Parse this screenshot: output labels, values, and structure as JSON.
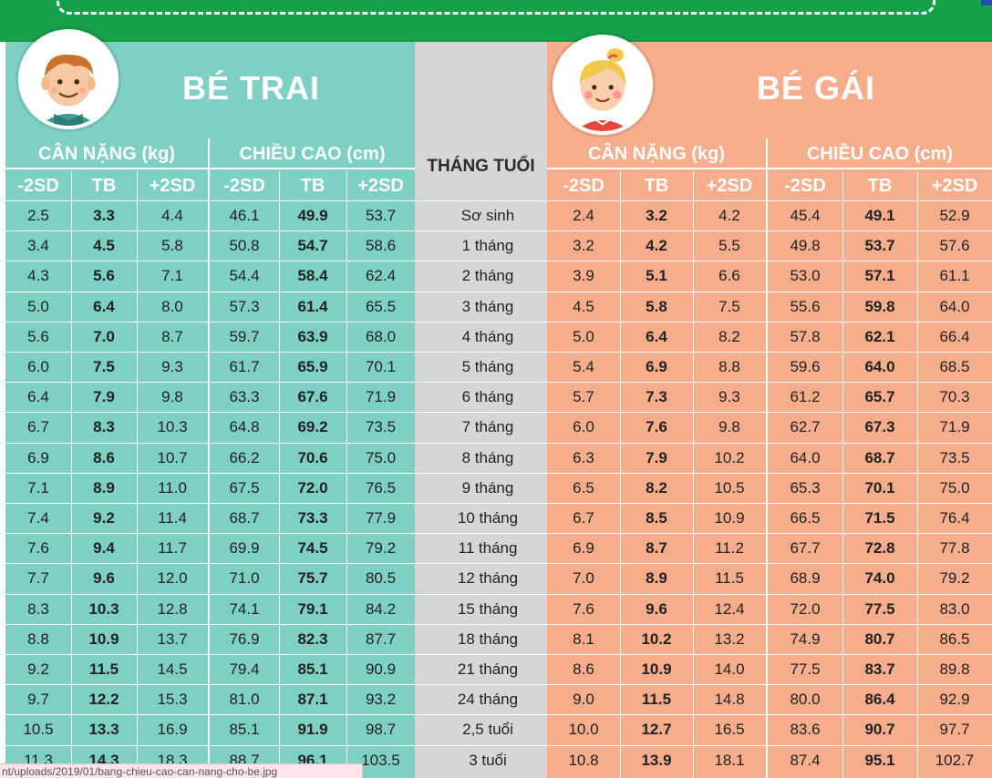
{
  "boy_title": "BÉ TRAI",
  "girl_title": "BÉ GÁI",
  "weight_header": "CÂN NẶNG (kg)",
  "height_header": "CHIỀU CAO (cm)",
  "age_header": "THÁNG TUỔI",
  "sub_headers": [
    "-2SD",
    "TB",
    "+2SD"
  ],
  "rows": [
    {
      "age": "Sơ sinh",
      "boy": [
        "2.5",
        "3.3",
        "4.4",
        "46.1",
        "49.9",
        "53.7"
      ],
      "girl": [
        "2.4",
        "3.2",
        "4.2",
        "45.4",
        "49.1",
        "52.9"
      ]
    },
    {
      "age": "1 tháng",
      "boy": [
        "3.4",
        "4.5",
        "5.8",
        "50.8",
        "54.7",
        "58.6"
      ],
      "girl": [
        "3.2",
        "4.2",
        "5.5",
        "49.8",
        "53.7",
        "57.6"
      ]
    },
    {
      "age": "2 tháng",
      "boy": [
        "4.3",
        "5.6",
        "7.1",
        "54.4",
        "58.4",
        "62.4"
      ],
      "girl": [
        "3.9",
        "5.1",
        "6.6",
        "53.0",
        "57.1",
        "61.1"
      ]
    },
    {
      "age": "3 tháng",
      "boy": [
        "5.0",
        "6.4",
        "8.0",
        "57.3",
        "61.4",
        "65.5"
      ],
      "girl": [
        "4.5",
        "5.8",
        "7.5",
        "55.6",
        "59.8",
        "64.0"
      ]
    },
    {
      "age": "4 tháng",
      "boy": [
        "5.6",
        "7.0",
        "8.7",
        "59.7",
        "63.9",
        "68.0"
      ],
      "girl": [
        "5.0",
        "6.4",
        "8.2",
        "57.8",
        "62.1",
        "66.4"
      ]
    },
    {
      "age": "5 tháng",
      "boy": [
        "6.0",
        "7.5",
        "9.3",
        "61.7",
        "65.9",
        "70.1"
      ],
      "girl": [
        "5.4",
        "6.9",
        "8.8",
        "59.6",
        "64.0",
        "68.5"
      ]
    },
    {
      "age": "6 tháng",
      "boy": [
        "6.4",
        "7.9",
        "9.8",
        "63.3",
        "67.6",
        "71.9"
      ],
      "girl": [
        "5.7",
        "7.3",
        "9.3",
        "61.2",
        "65.7",
        "70.3"
      ]
    },
    {
      "age": "7 tháng",
      "boy": [
        "6.7",
        "8.3",
        "10.3",
        "64.8",
        "69.2",
        "73.5"
      ],
      "girl": [
        "6.0",
        "7.6",
        "9.8",
        "62.7",
        "67.3",
        "71.9"
      ]
    },
    {
      "age": "8 tháng",
      "boy": [
        "6.9",
        "8.6",
        "10.7",
        "66.2",
        "70.6",
        "75.0"
      ],
      "girl": [
        "6.3",
        "7.9",
        "10.2",
        "64.0",
        "68.7",
        "73.5"
      ]
    },
    {
      "age": "9 tháng",
      "boy": [
        "7.1",
        "8.9",
        "11.0",
        "67.5",
        "72.0",
        "76.5"
      ],
      "girl": [
        "6.5",
        "8.2",
        "10.5",
        "65.3",
        "70.1",
        "75.0"
      ]
    },
    {
      "age": "10 tháng",
      "boy": [
        "7.4",
        "9.2",
        "11.4",
        "68.7",
        "73.3",
        "77.9"
      ],
      "girl": [
        "6.7",
        "8.5",
        "10.9",
        "66.5",
        "71.5",
        "76.4"
      ]
    },
    {
      "age": "11 tháng",
      "boy": [
        "7.6",
        "9.4",
        "11.7",
        "69.9",
        "74.5",
        "79.2"
      ],
      "girl": [
        "6.9",
        "8.7",
        "11.2",
        "67.7",
        "72.8",
        "77.8"
      ]
    },
    {
      "age": "12 tháng",
      "boy": [
        "7.7",
        "9.6",
        "12.0",
        "71.0",
        "75.7",
        "80.5"
      ],
      "girl": [
        "7.0",
        "8.9",
        "11.5",
        "68.9",
        "74.0",
        "79.2"
      ]
    },
    {
      "age": "15 tháng",
      "boy": [
        "8.3",
        "10.3",
        "12.8",
        "74.1",
        "79.1",
        "84.2"
      ],
      "girl": [
        "7.6",
        "9.6",
        "12.4",
        "72.0",
        "77.5",
        "83.0"
      ]
    },
    {
      "age": "18 tháng",
      "boy": [
        "8.8",
        "10.9",
        "13.7",
        "76.9",
        "82.3",
        "87.7"
      ],
      "girl": [
        "8.1",
        "10.2",
        "13.2",
        "74.9",
        "80.7",
        "86.5"
      ]
    },
    {
      "age": "21 tháng",
      "boy": [
        "9.2",
        "11.5",
        "14.5",
        "79.4",
        "85.1",
        "90.9"
      ],
      "girl": [
        "8.6",
        "10.9",
        "14.0",
        "77.5",
        "83.7",
        "89.8"
      ]
    },
    {
      "age": "24 tháng",
      "boy": [
        "9.7",
        "12.2",
        "15.3",
        "81.0",
        "87.1",
        "93.2"
      ],
      "girl": [
        "9.0",
        "11.5",
        "14.8",
        "80.0",
        "86.4",
        "92.9"
      ]
    },
    {
      "age": "2,5 tuổi",
      "boy": [
        "10.5",
        "13.3",
        "16.9",
        "85.1",
        "91.9",
        "98.7"
      ],
      "girl": [
        "10.0",
        "12.7",
        "16.5",
        "83.6",
        "90.7",
        "97.7"
      ]
    },
    {
      "age": "3 tuổi",
      "boy": [
        "11.3",
        "14.3",
        "18.3",
        "88.7",
        "96.1",
        "103.5"
      ],
      "girl": [
        "10.8",
        "13.9",
        "18.1",
        "87.4",
        "95.1",
        "102.7"
      ]
    }
  ],
  "status_url": "nt/uploads/2019/01/bang-chieu-cao-can-nang-cho-be.jpg",
  "colors": {
    "boy": "#7ecfc4",
    "girl": "#f6ad8c",
    "middle": "#d6d6d6",
    "band": "#16a04a"
  }
}
